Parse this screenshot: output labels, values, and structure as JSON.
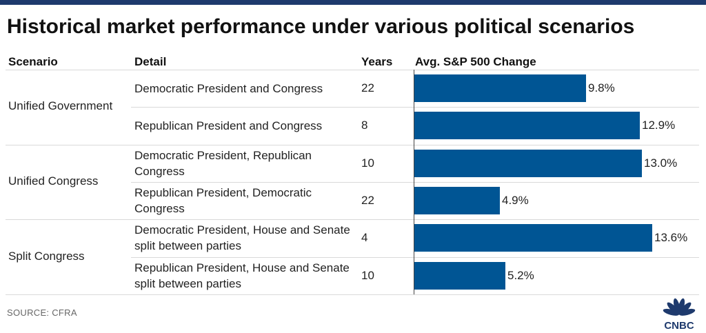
{
  "title": "Historical market performance under various political scenarios",
  "source": "SOURCE: CFRA",
  "logo_text": "CNBC",
  "colors": {
    "bar": "#005594",
    "top_bar": "#1e3a6d"
  },
  "chart_data": {
    "type": "bar",
    "orientation": "horizontal",
    "title": "Historical market performance under various political scenarios",
    "columns": [
      "Scenario",
      "Detail",
      "Years",
      "Avg. S&P 500 Change"
    ],
    "groups": [
      {
        "label": "Unified Government",
        "rows": [
          0,
          1
        ]
      },
      {
        "label": "Unified Congress",
        "rows": [
          2,
          3
        ]
      },
      {
        "label": "Split Congress",
        "rows": [
          4,
          5
        ]
      }
    ],
    "rows": [
      {
        "detail": "Democratic President and Congress",
        "years": "22",
        "value": 9.8,
        "label": "9.8%"
      },
      {
        "detail": "Republican President and Congress",
        "years": "8",
        "value": 12.9,
        "label": "12.9%"
      },
      {
        "detail": "Democratic President, Republican Congress",
        "years": "10",
        "value": 13.0,
        "label": "13.0%"
      },
      {
        "detail": "Republican President, Democratic Congress",
        "years": "22",
        "value": 4.9,
        "label": "4.9%"
      },
      {
        "detail": "Democratic President, House and Senate split between parties",
        "years": "4",
        "value": 13.6,
        "label": "13.6%"
      },
      {
        "detail": "Republican President, House and Senate split between parties",
        "years": "10",
        "value": 5.2,
        "label": "5.2%"
      }
    ],
    "xlim": [
      0,
      13.6
    ],
    "grid": false,
    "legend": "none"
  }
}
